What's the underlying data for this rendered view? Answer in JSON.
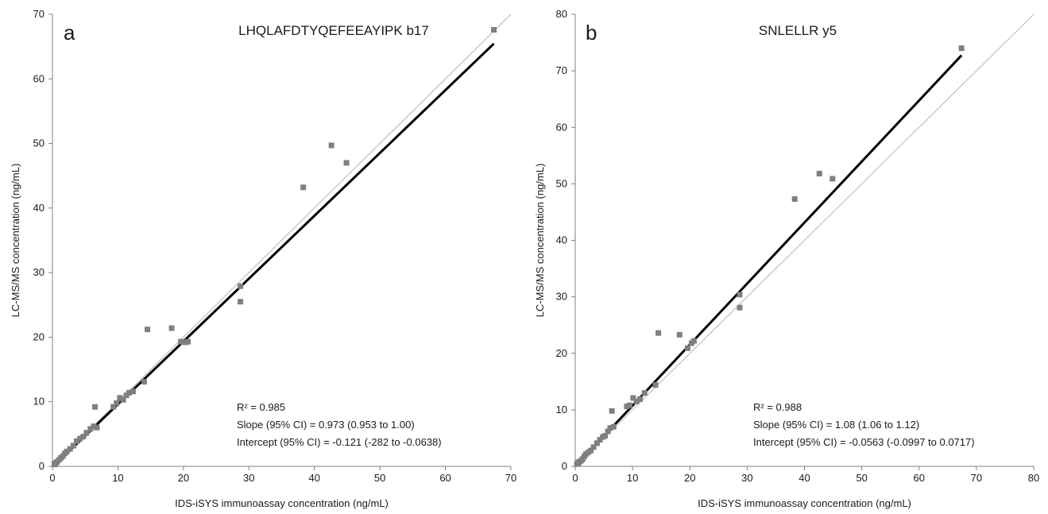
{
  "chart_data": [
    {
      "type": "scatter",
      "panel_label": "a",
      "title": "LHQLAFDTYQEFEEAYIPK b17",
      "xlabel": "IDS-iSYS immunoassay concentration (ng/mL)",
      "ylabel": "LC-MS/MS  concentration (ng/mL)",
      "xlim": [
        0,
        70
      ],
      "ylim": [
        0,
        70
      ],
      "xticks": [
        0,
        10,
        20,
        30,
        40,
        50,
        60,
        70
      ],
      "yticks": [
        0,
        10,
        20,
        30,
        40,
        50,
        60,
        70
      ],
      "grid": false,
      "points": [
        [
          0.3,
          0.3
        ],
        [
          0.5,
          0.5
        ],
        [
          0.7,
          0.7
        ],
        [
          1.0,
          1.0
        ],
        [
          1.3,
          1.3
        ],
        [
          1.6,
          1.6
        ],
        [
          1.9,
          2.0
        ],
        [
          2.2,
          2.3
        ],
        [
          2.7,
          2.7
        ],
        [
          3.2,
          3.2
        ],
        [
          3.7,
          3.9
        ],
        [
          4.2,
          4.3
        ],
        [
          4.7,
          4.6
        ],
        [
          5.2,
          5.2
        ],
        [
          5.8,
          5.8
        ],
        [
          6.3,
          6.2
        ],
        [
          6.5,
          9.2
        ],
        [
          6.8,
          6.0
        ],
        [
          9.3,
          9.2
        ],
        [
          9.8,
          9.8
        ],
        [
          10.3,
          10.6
        ],
        [
          10.8,
          10.3
        ],
        [
          11.3,
          11.0
        ],
        [
          11.7,
          11.4
        ],
        [
          12.3,
          11.6
        ],
        [
          14.0,
          13.1
        ],
        [
          14.5,
          21.2
        ],
        [
          18.2,
          21.4
        ],
        [
          19.6,
          19.3
        ],
        [
          20.3,
          19.2
        ],
        [
          20.7,
          19.3
        ],
        [
          28.7,
          27.9
        ],
        [
          28.7,
          25.5
        ],
        [
          38.3,
          43.2
        ],
        [
          42.6,
          49.7
        ],
        [
          44.9,
          47.0
        ],
        [
          67.4,
          67.6
        ]
      ],
      "fit_line": {
        "slope": 0.973,
        "intercept": -0.121,
        "color": "#000000"
      },
      "identity_line": {
        "color": "#c8c8c8"
      },
      "marker_color": "#7f7f7f",
      "annotations": [
        "R² = 0.985",
        "Slope (95% CI) = 0.973 (0.953 to 1.00)",
        "Intercept (95% CI) = -0.121 (-282 to -0.0638)"
      ]
    },
    {
      "type": "scatter",
      "panel_label": "b",
      "title": "SNLELLR y5",
      "xlabel": "IDS-iSYS immunoassay concentration (ng/mL)",
      "ylabel": "LC-MS/MS  concentration (ng/mL)",
      "xlim": [
        0,
        80
      ],
      "ylim": [
        0,
        80
      ],
      "xticks": [
        0,
        10,
        20,
        30,
        40,
        50,
        60,
        70,
        80
      ],
      "yticks": [
        0,
        10,
        20,
        30,
        40,
        50,
        60,
        70,
        80
      ],
      "grid": false,
      "points": [
        [
          0.3,
          0.4
        ],
        [
          0.5,
          0.6
        ],
        [
          0.7,
          0.8
        ],
        [
          1.0,
          1.0
        ],
        [
          1.3,
          1.3
        ],
        [
          1.6,
          1.8
        ],
        [
          1.9,
          2.2
        ],
        [
          2.3,
          2.5
        ],
        [
          2.7,
          2.8
        ],
        [
          3.2,
          3.4
        ],
        [
          3.8,
          4.1
        ],
        [
          4.3,
          4.7
        ],
        [
          4.8,
          5.2
        ],
        [
          5.2,
          5.4
        ],
        [
          5.7,
          6.2
        ],
        [
          6.1,
          6.8
        ],
        [
          6.4,
          9.8
        ],
        [
          6.7,
          7.0
        ],
        [
          9.0,
          10.6
        ],
        [
          9.5,
          10.8
        ],
        [
          10.1,
          12.1
        ],
        [
          10.7,
          11.5
        ],
        [
          11.3,
          11.9
        ],
        [
          12.1,
          13.0
        ],
        [
          14.0,
          14.4
        ],
        [
          14.5,
          23.6
        ],
        [
          18.2,
          23.3
        ],
        [
          19.6,
          20.9
        ],
        [
          20.3,
          21.8
        ],
        [
          20.7,
          22.2
        ],
        [
          28.7,
          30.4
        ],
        [
          28.7,
          28.1
        ],
        [
          38.3,
          47.3
        ],
        [
          42.6,
          51.8
        ],
        [
          44.9,
          50.9
        ],
        [
          67.4,
          74.0
        ]
      ],
      "fit_line": {
        "slope": 1.08,
        "intercept": -0.0563,
        "color": "#000000"
      },
      "identity_line": {
        "color": "#c8c8c8"
      },
      "marker_color": "#7f7f7f",
      "annotations": [
        "R² = 0.988",
        "Slope (95% CI) = 1.08 (1.06 to 1.12)",
        "Intercept (95% CI) = -0.0563 (-0.0997 to 0.0717)"
      ]
    }
  ]
}
